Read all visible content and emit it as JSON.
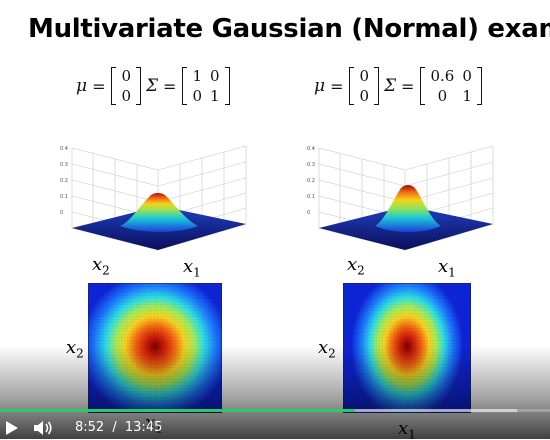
{
  "slide": {
    "title": "Multivariate Gaussian (Normal) exampl",
    "left": {
      "mu_symbol": "μ",
      "sigma_symbol": "Σ",
      "equals": "=",
      "mu": [
        [
          "0"
        ],
        [
          "0"
        ]
      ],
      "sigma": [
        [
          "1",
          "0"
        ],
        [
          "0",
          "1"
        ]
      ],
      "x2_label": "x",
      "x2_sub": "2",
      "x1_label": "x",
      "x1_sub": "1",
      "heat_x2_label": "x",
      "heat_x2_sub": "2",
      "heat_x1_label": "x",
      "heat_x1_sub": "1",
      "z_ticks": [
        "0.4",
        "0.3",
        "0.2",
        "0.1",
        "0"
      ]
    },
    "right": {
      "mu_symbol": "μ",
      "sigma_symbol": "Σ",
      "equals": "=",
      "mu": [
        [
          "0"
        ],
        [
          "0"
        ]
      ],
      "sigma": [
        [
          "0.6",
          "0"
        ],
        [
          "0",
          "1"
        ]
      ],
      "x2_label": "x",
      "x2_sub": "2",
      "x1_label": "x",
      "x1_sub": "1",
      "heat_x2_label": "x",
      "heat_x2_sub": "2",
      "heat_x1_label": "x",
      "heat_x1_sub": "1",
      "z_ticks": [
        "0.4",
        "0.3",
        "0.2",
        "0.1",
        "0"
      ]
    }
  },
  "player": {
    "current_time": "8:52",
    "separator": "/",
    "duration": "13:45",
    "progress_fraction": 0.645,
    "buffered_fraction": 0.94,
    "accent_color": "#2ec866",
    "icons": [
      "play-icon",
      "volume-icon"
    ]
  }
}
